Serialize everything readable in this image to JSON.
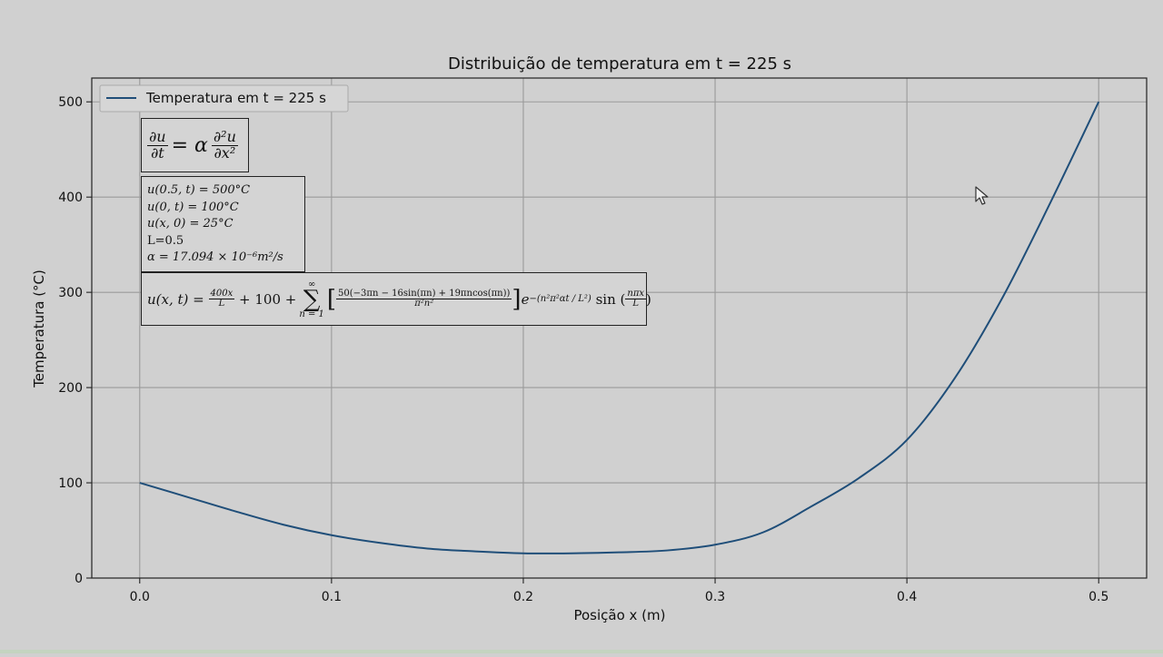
{
  "chart_data": {
    "type": "line",
    "title": "Distribuição de temperatura em t = 225 s",
    "xlabel": "Posição x (m)",
    "ylabel": "Temperatura (°C)",
    "xlim": [
      -0.025,
      0.525
    ],
    "ylim": [
      0,
      525
    ],
    "xticks": [
      0.0,
      0.1,
      0.2,
      0.3,
      0.4,
      0.5
    ],
    "xtick_labels": [
      "0.0",
      "0.1",
      "0.2",
      "0.3",
      "0.4",
      "0.5"
    ],
    "yticks": [
      0,
      100,
      200,
      300,
      400,
      500
    ],
    "ytick_labels": [
      "0",
      "100",
      "200",
      "300",
      "400",
      "500"
    ],
    "grid": true,
    "legend_position": "top-left",
    "series": [
      {
        "name": "Temperatura em t = 225 s",
        "color": "#1f4e79",
        "x": [
          0.0,
          0.025,
          0.05,
          0.075,
          0.1,
          0.125,
          0.15,
          0.175,
          0.2,
          0.225,
          0.25,
          0.275,
          0.3,
          0.325,
          0.35,
          0.375,
          0.4,
          0.425,
          0.45,
          0.475,
          0.5
        ],
        "y": [
          100,
          85,
          70,
          56,
          45,
          37,
          31,
          28,
          26,
          26,
          27,
          29,
          35,
          48,
          75,
          105,
          145,
          210,
          295,
          395,
          500
        ]
      }
    ]
  },
  "annotations": {
    "pde": {
      "du": "∂u",
      "dt": "∂t",
      "eq": "= α",
      "d2u": "∂²u",
      "dx2": "∂x²"
    },
    "conditions": [
      "u(0.5, t) = 500°C",
      "u(0, t) = 100°C",
      "u(x, 0) = 25°C",
      "L=0.5",
      "α = 17.094 × 10⁻⁶m²/s"
    ],
    "solution": {
      "lhs": "u(x, t) =",
      "frac1_num": "400x",
      "frac1_den": "L",
      "plus100": "+ 100 +",
      "sum_top": "∞",
      "sum_sym": "∑",
      "sum_bottom": "n = 1",
      "open_br": "[",
      "coef_num": "50(−3πn − 16sin(πn) + 19πncos(πn))",
      "coef_den": "π²n²",
      "close_br": "]",
      "exp_base": "e",
      "exp_power": "−(n²π²αt / L²)",
      "sin_text": "sin (",
      "sin_num": "nπx",
      "sin_den": "L",
      "sin_close": ")"
    }
  },
  "colors": {
    "background": "#d0d0d0",
    "line": "#1f4e79",
    "grid": "#9a9a9a"
  },
  "icons": {
    "cursor": "mouse-pointer-icon"
  }
}
